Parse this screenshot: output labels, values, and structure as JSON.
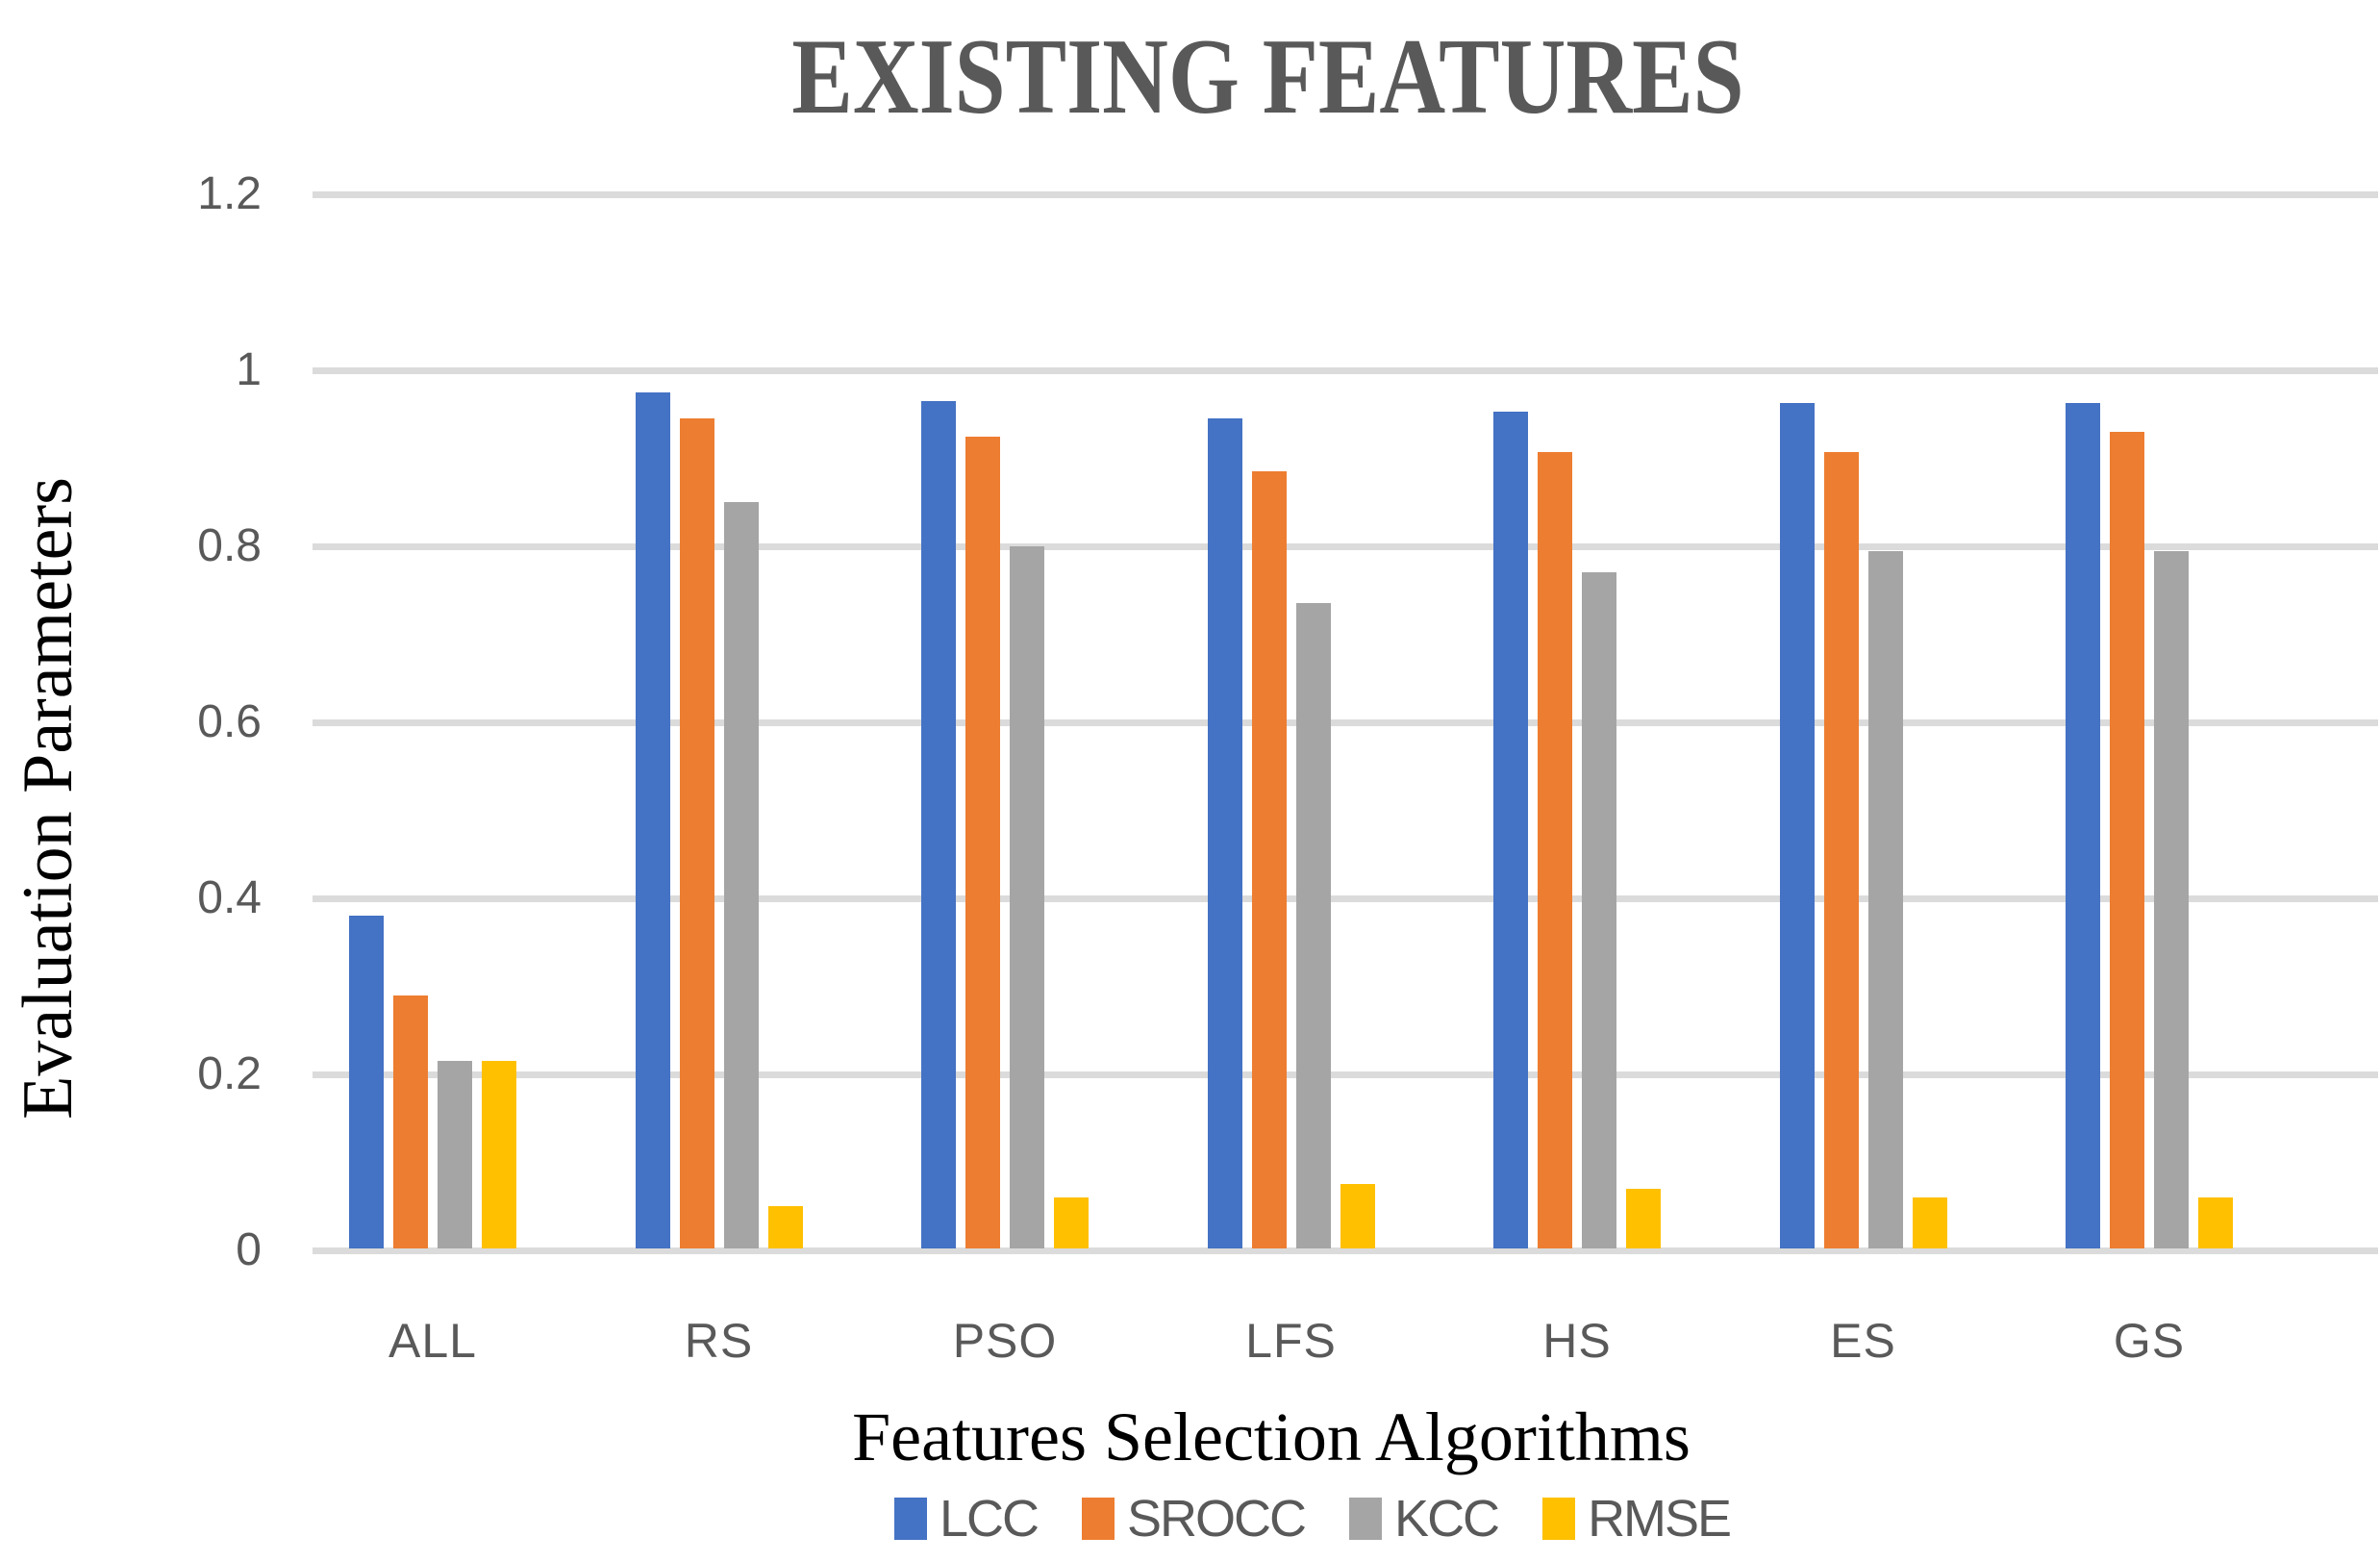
{
  "chart_data": {
    "type": "bar",
    "title": "EXISTING FEATURES",
    "xlabel": "Features Selection Algorithms",
    "ylabel": "Evaluation Parameters",
    "categories": [
      "ALL",
      "RS",
      "PSO",
      "LFS",
      "HS",
      "ES",
      "GS"
    ],
    "series": [
      {
        "name": "LCC",
        "color": "#4472C4",
        "values": [
          0.38,
          0.975,
          0.965,
          0.945,
          0.953,
          0.963,
          0.963
        ]
      },
      {
        "name": "SROCC",
        "color": "#ED7D31",
        "values": [
          0.29,
          0.945,
          0.925,
          0.885,
          0.907,
          0.907,
          0.93
        ]
      },
      {
        "name": "KCC",
        "color": "#A5A5A5",
        "values": [
          0.215,
          0.85,
          0.8,
          0.735,
          0.77,
          0.795,
          0.795
        ]
      },
      {
        "name": "RMSE",
        "color": "#FFC000",
        "values": [
          0.215,
          0.05,
          0.06,
          0.075,
          0.07,
          0.06,
          0.06
        ]
      }
    ],
    "ylim": [
      0,
      1.2
    ],
    "yticks": [
      0,
      0.2,
      0.4,
      0.6,
      0.8,
      1,
      1.2
    ],
    "grid": true,
    "legend_position": "bottom",
    "gridline_color": "#dbdbdb",
    "text_gray": "#595959"
  }
}
